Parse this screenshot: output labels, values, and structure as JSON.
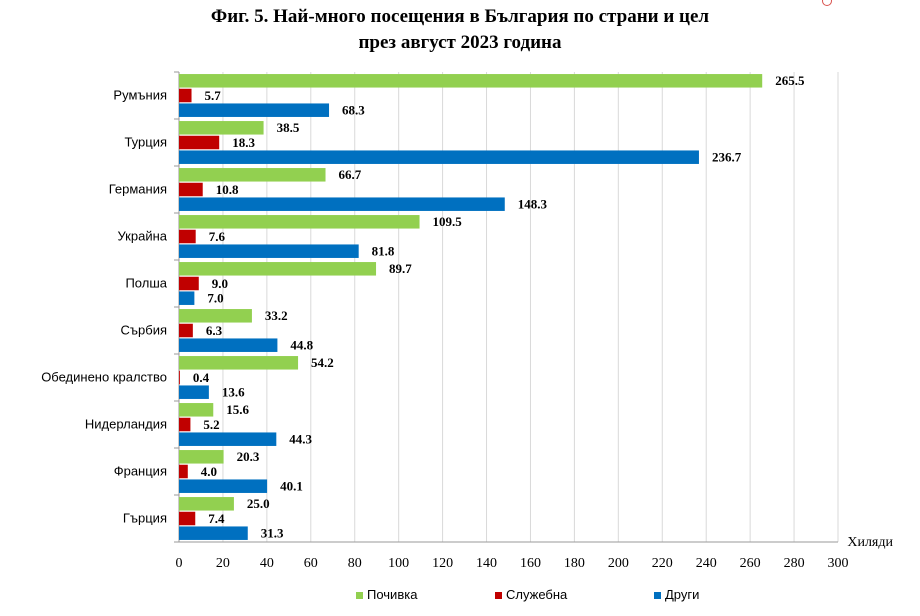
{
  "chart_data": {
    "type": "bar",
    "orientation": "horizontal",
    "title_lines": [
      "Фиг. 5. Най-много посещения в България по страни и цел",
      "през август 2023 година"
    ],
    "xlabel": "Хиляди",
    "xlim": [
      0,
      300
    ],
    "xticks": [
      0,
      20,
      40,
      60,
      80,
      100,
      120,
      140,
      160,
      180,
      200,
      220,
      240,
      260,
      280,
      300
    ],
    "grid": true,
    "legend_position": "bottom",
    "categories": [
      "Румъния",
      "Турция",
      "Германия",
      "Украйна",
      "Полша",
      "Сърбия",
      "Обединено кралство",
      "Нидерландия",
      "Франция",
      "Гърция"
    ],
    "series": [
      {
        "name": "Почивка",
        "color": "#92d050",
        "values": [
          265.5,
          38.5,
          66.7,
          109.5,
          89.7,
          33.2,
          54.2,
          15.6,
          20.3,
          25.0
        ]
      },
      {
        "name": "Служебна",
        "color": "#c00000",
        "values": [
          5.7,
          18.3,
          10.8,
          7.6,
          9.0,
          6.3,
          0.4,
          5.2,
          4.0,
          7.4
        ]
      },
      {
        "name": "Други",
        "color": "#0070c0",
        "values": [
          68.3,
          236.7,
          148.3,
          81.8,
          7.0,
          44.8,
          13.6,
          44.3,
          40.1,
          31.3
        ]
      }
    ]
  }
}
